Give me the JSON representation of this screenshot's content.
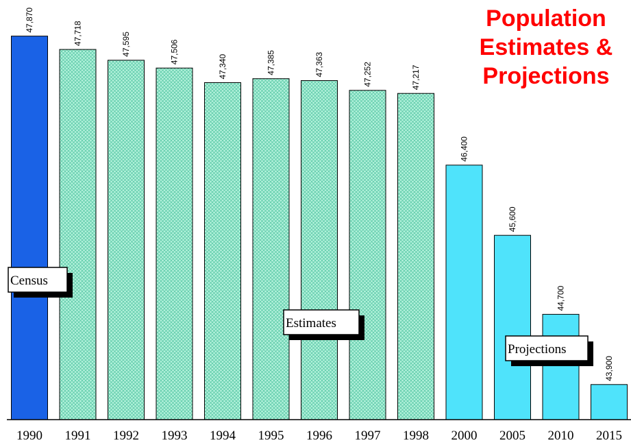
{
  "chart_data": {
    "type": "bar",
    "title": [
      "Population",
      "Estimates &",
      "Projections"
    ],
    "categories": [
      "1990",
      "1991",
      "1992",
      "1993",
      "1994",
      "1995",
      "1996",
      "1997",
      "1998",
      "2000",
      "2005",
      "2010",
      "2015"
    ],
    "values": [
      47870,
      47718,
      47595,
      47506,
      47340,
      47385,
      47363,
      47252,
      47217,
      46400,
      45600,
      44700,
      43900
    ],
    "value_labels": [
      "47,870",
      "47,718",
      "47,595",
      "47,506",
      "47,340",
      "47,385",
      "47,363",
      "47,252",
      "47,217",
      "46,400",
      "45,600",
      "44,700",
      "43,900"
    ],
    "colors": [
      "#1a62e6",
      "#b4f2dc",
      "#b4f2dc",
      "#b4f2dc",
      "#b4f2dc",
      "#b4f2dc",
      "#b4f2dc",
      "#b4f2dc",
      "#b4f2dc",
      "#4fe3fb",
      "#4fe3fb",
      "#4fe3fb",
      "#4fe3fb"
    ],
    "hatched": [
      false,
      true,
      true,
      true,
      true,
      true,
      true,
      true,
      true,
      false,
      false,
      false,
      false
    ],
    "annotations": [
      "Census",
      "Estimates",
      "Projections"
    ],
    "ylim": [
      43500,
      48000
    ]
  }
}
